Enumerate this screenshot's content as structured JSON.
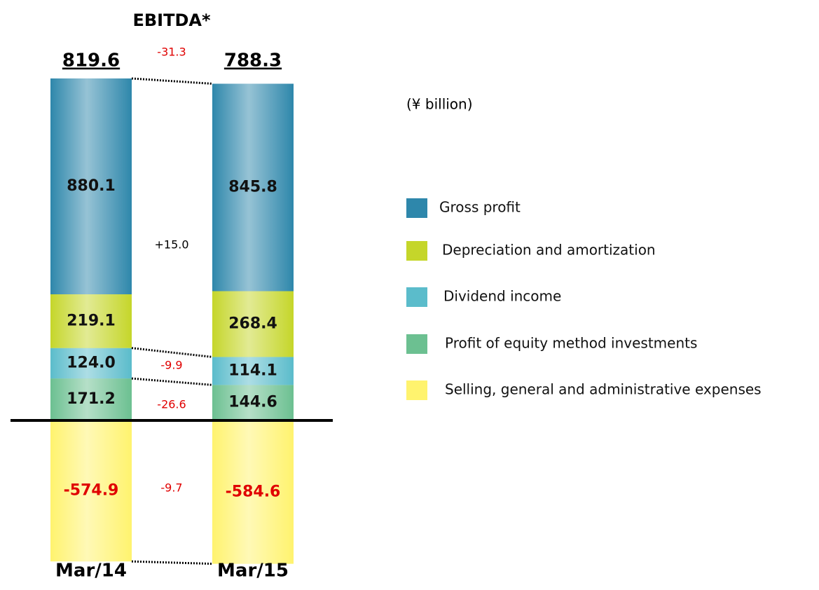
{
  "chart_data": {
    "type": "stacked_bar",
    "title": "EBITDA*",
    "unit_label": "(¥ billion)",
    "categories": [
      "Mar/14",
      "Mar/15"
    ],
    "totals": [
      819.6,
      788.3
    ],
    "series": [
      {
        "name": "Gross profit",
        "color": "#2e87ab",
        "values": [
          880.1,
          845.8
        ],
        "value_labels": [
          "880.1",
          "845.8"
        ]
      },
      {
        "name": "Depreciation and amortization",
        "color": "#c5d62a",
        "values": [
          219.1,
          268.4
        ],
        "value_labels": [
          "219.1",
          "268.4"
        ]
      },
      {
        "name": "Dividend income",
        "color": "#5bbccb",
        "values": [
          124.0,
          114.1
        ],
        "value_labels": [
          "124.0",
          "114.1"
        ]
      },
      {
        "name": "Profit of equity method investments",
        "color": "#6cc091",
        "values": [
          171.2,
          144.6
        ],
        "value_labels": [
          "171.2",
          "144.6"
        ]
      },
      {
        "name": "Selling, general and administrative expenses",
        "color": "#fff36e",
        "values": [
          -574.9,
          -584.6
        ],
        "value_labels": [
          "-574.9",
          "-584.6"
        ]
      }
    ],
    "annotations": [
      {
        "text": "-31.3",
        "color": "#e00000"
      },
      {
        "text": "+15.0",
        "color": "#000000"
      },
      {
        "text": "-9.9",
        "color": "#e00000"
      },
      {
        "text": "-26.6",
        "color": "#e00000"
      },
      {
        "text": "-9.7",
        "color": "#e00000"
      }
    ]
  }
}
